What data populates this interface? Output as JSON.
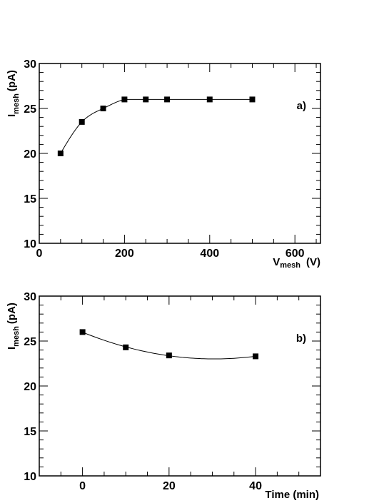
{
  "chart_data": [
    {
      "type": "scatter",
      "panel_label": "a)",
      "ylabel_main": "I",
      "ylabel_sub": "mesh",
      "ylabel_unit": "(pA)",
      "xlabel_main": "V",
      "xlabel_sub": "mesh",
      "xlabel_unit": "(V)",
      "xlim": [
        0,
        660
      ],
      "ylim": [
        10,
        30
      ],
      "xticks": [
        0,
        200,
        400,
        600
      ],
      "yticks": [
        10,
        15,
        20,
        25,
        30
      ],
      "xtick_labels": [
        "0",
        "200",
        "400",
        "600"
      ],
      "ytick_labels": [
        "10",
        "15",
        "20",
        "25",
        "30"
      ],
      "x": [
        50,
        100,
        150,
        200,
        250,
        300,
        400,
        500
      ],
      "y": [
        20.0,
        23.5,
        25.0,
        26.0,
        26.0,
        26.0,
        26.0,
        26.0
      ],
      "fit_curve": true,
      "grid": false
    },
    {
      "type": "scatter",
      "panel_label": "b)",
      "ylabel_main": "I",
      "ylabel_sub": "mesh",
      "ylabel_unit": "(pA)",
      "xlabel_text": "Time (min)",
      "xlim": [
        -10,
        55
      ],
      "ylim": [
        10,
        30
      ],
      "xticks": [
        0,
        20,
        40
      ],
      "yticks": [
        10,
        15,
        20,
        25,
        30
      ],
      "xtick_labels": [
        "0",
        "20",
        "40"
      ],
      "ytick_labels": [
        "10",
        "15",
        "20",
        "25",
        "30"
      ],
      "x": [
        0,
        10,
        20,
        40
      ],
      "y": [
        26.0,
        24.3,
        23.4,
        23.3
      ],
      "fit_curve": true,
      "grid": false
    }
  ]
}
